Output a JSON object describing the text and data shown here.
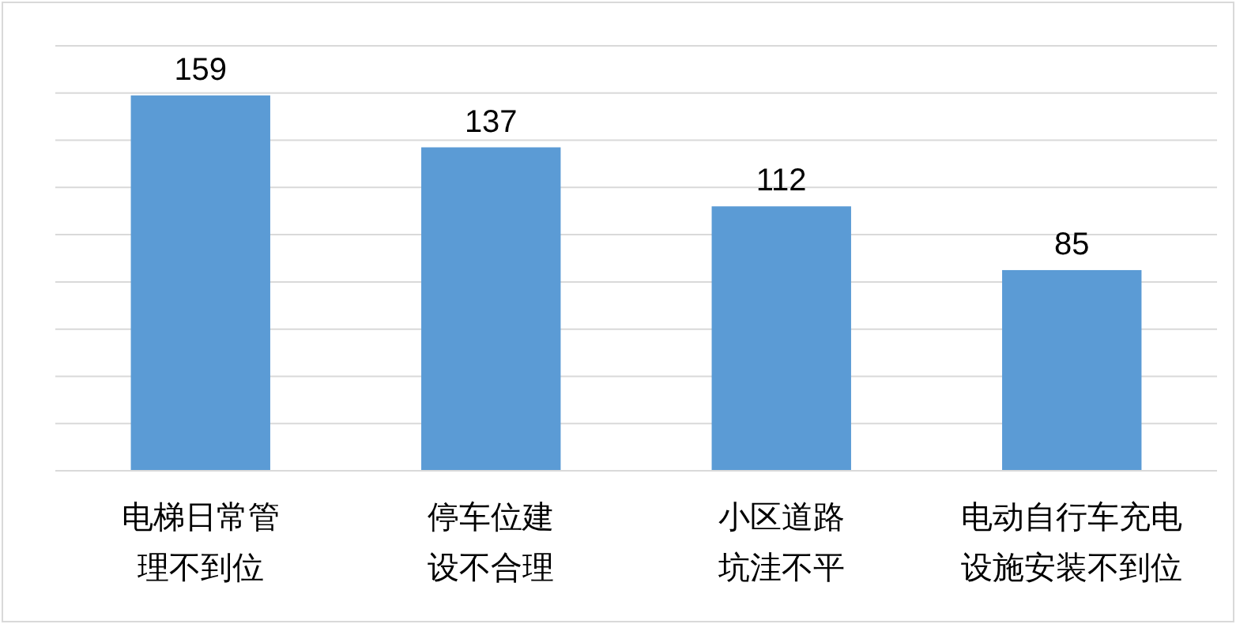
{
  "chart_data": {
    "type": "bar",
    "categories": [
      "电梯日常管理不到位",
      "停车位建设不合理",
      "小区道路坑洼不平",
      "电动自行车充电设施安装不到位"
    ],
    "values": [
      159,
      137,
      112,
      85
    ],
    "color": "#5b9bd5",
    "ylim": [
      0,
      180
    ],
    "yticks": [
      {
        "value": 0,
        "label": null
      },
      {
        "value": 20,
        "label": null
      },
      {
        "value": 40,
        "label": null
      },
      {
        "value": 60,
        "label": null
      },
      {
        "value": 80,
        "label": null
      },
      {
        "value": 100,
        "label": null
      },
      {
        "value": 120,
        "label": null
      },
      {
        "value": 140,
        "label": null
      },
      {
        "value": 160,
        "label": null
      },
      {
        "value": 180,
        "label": null
      }
    ],
    "grid": "y",
    "tick_labels": "x",
    "data_labels": true
  }
}
